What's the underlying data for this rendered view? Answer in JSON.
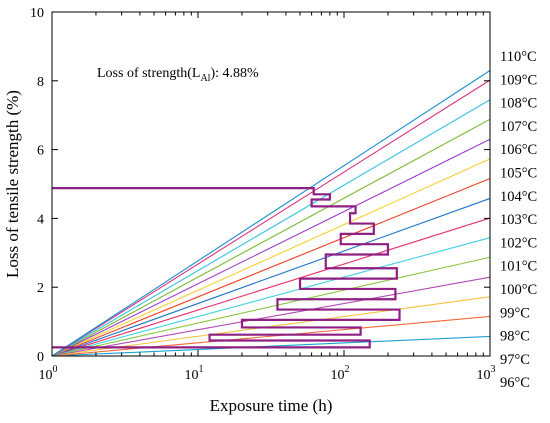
{
  "chart_data": {
    "type": "line",
    "xscale": "log",
    "xlim": [
      1,
      1000
    ],
    "ylim": [
      0,
      10
    ],
    "xlabel": "Exposure time (h)",
    "ylabel": "Loss of tensile strength (%)",
    "x_ticks": [
      1,
      10,
      100,
      1000
    ],
    "x_tick_labels": [
      {
        "base": "10",
        "exp": "0"
      },
      {
        "base": "10",
        "exp": "1"
      },
      {
        "base": "10",
        "exp": "2"
      },
      {
        "base": "10",
        "exp": "3"
      }
    ],
    "y_ticks": [
      0,
      2,
      4,
      6,
      8,
      10
    ],
    "y_tick_labels": [
      "0",
      "2",
      "4",
      "6",
      "8",
      "10"
    ],
    "annotation": {
      "prefix": "Loss of strength(L",
      "subscript": "Al",
      "suffix": "): 4.88%"
    },
    "series": [
      {
        "name": "96°C",
        "color": "#1ba1d2",
        "x": [
          1,
          1000
        ],
        "y": [
          0,
          0.57
        ]
      },
      {
        "name": "97°C",
        "color": "#f26a3a",
        "x": [
          1,
          1000
        ],
        "y": [
          0,
          1.15
        ]
      },
      {
        "name": "98°C",
        "color": "#f5c242",
        "x": [
          1,
          1000
        ],
        "y": [
          0,
          1.72
        ]
      },
      {
        "name": "99°C",
        "color": "#b24ab5",
        "x": [
          1,
          1000
        ],
        "y": [
          0,
          2.29
        ]
      },
      {
        "name": "100°C",
        "color": "#8cc63e",
        "x": [
          1,
          1000
        ],
        "y": [
          0,
          2.87
        ]
      },
      {
        "name": "101°C",
        "color": "#3fd0e2",
        "x": [
          1,
          1000
        ],
        "y": [
          0,
          3.44
        ]
      },
      {
        "name": "102°C",
        "color": "#e8336b",
        "x": [
          1,
          1000
        ],
        "y": [
          0,
          4.01
        ]
      },
      {
        "name": "103°C",
        "color": "#1e74c8",
        "x": [
          1,
          1000
        ],
        "y": [
          0,
          4.58
        ]
      },
      {
        "name": "104°C",
        "color": "#ef4123",
        "x": [
          1,
          1000
        ],
        "y": [
          0,
          5.16
        ]
      },
      {
        "name": "105°C",
        "color": "#f7d231",
        "x": [
          1,
          1000
        ],
        "y": [
          0,
          5.73
        ]
      },
      {
        "name": "106°C",
        "color": "#9c3cc8",
        "x": [
          1,
          1000
        ],
        "y": [
          0,
          6.3
        ]
      },
      {
        "name": "107°C",
        "color": "#79b933",
        "x": [
          1,
          1000
        ],
        "y": [
          0,
          6.88
        ]
      },
      {
        "name": "108°C",
        "color": "#34c1e3",
        "x": [
          1,
          1000
        ],
        "y": [
          0,
          7.45
        ]
      },
      {
        "name": "109°C",
        "color": "#d9307f",
        "x": [
          1,
          1000
        ],
        "y": [
          0,
          8.02
        ]
      },
      {
        "name": "110°C",
        "color": "#1a8fd0",
        "x": [
          1,
          1000
        ],
        "y": [
          0,
          8.3
        ]
      }
    ],
    "zigzag": {
      "color": "#8e1f83",
      "points": [
        [
          1,
          0.25
        ],
        [
          150,
          0.25
        ],
        [
          150,
          0.45
        ],
        [
          12,
          0.45
        ],
        [
          12,
          0.62
        ],
        [
          130,
          0.62
        ],
        [
          130,
          0.83
        ],
        [
          20,
          0.83
        ],
        [
          20,
          1.05
        ],
        [
          240,
          1.05
        ],
        [
          240,
          1.35
        ],
        [
          35,
          1.35
        ],
        [
          35,
          1.65
        ],
        [
          225,
          1.65
        ],
        [
          225,
          1.95
        ],
        [
          50,
          1.95
        ],
        [
          50,
          2.25
        ],
        [
          230,
          2.25
        ],
        [
          230,
          2.55
        ],
        [
          75,
          2.55
        ],
        [
          75,
          2.95
        ],
        [
          200,
          2.95
        ],
        [
          200,
          3.25
        ],
        [
          95,
          3.25
        ],
        [
          95,
          3.55
        ],
        [
          160,
          3.55
        ],
        [
          160,
          3.85
        ],
        [
          110,
          3.85
        ],
        [
          110,
          4.15
        ],
        [
          120,
          4.15
        ],
        [
          120,
          4.35
        ],
        [
          60,
          4.35
        ],
        [
          60,
          4.55
        ],
        [
          80,
          4.55
        ],
        [
          80,
          4.7
        ],
        [
          62,
          4.7
        ],
        [
          62,
          4.88
        ],
        [
          1,
          4.88
        ]
      ]
    }
  }
}
